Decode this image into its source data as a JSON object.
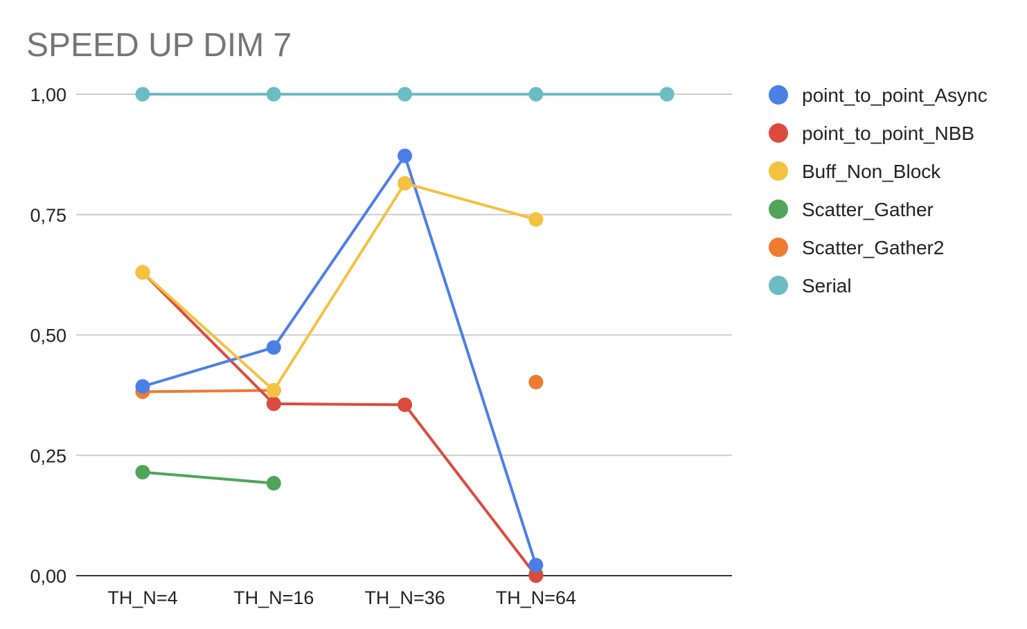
{
  "chart_data": {
    "type": "line",
    "title": "SPEED UP DIM 7",
    "xlabel": "",
    "ylabel": "",
    "categories": [
      "TH_N=4",
      "TH_N=16",
      "TH_N=36",
      "TH_N=64",
      ""
    ],
    "ylim": [
      0,
      1
    ],
    "y_ticks": [
      {
        "value": 0,
        "label": "0,00"
      },
      {
        "value": 0.25,
        "label": "0,25"
      },
      {
        "value": 0.5,
        "label": "0,50"
      },
      {
        "value": 0.75,
        "label": "0,75"
      },
      {
        "value": 1,
        "label": "1,00"
      }
    ],
    "grid": true,
    "legend_position": "right",
    "series": [
      {
        "name": "point_to_point_Async",
        "color": "#4A7FE7",
        "values": [
          0.393,
          0.474,
          0.872,
          0.022,
          null
        ]
      },
      {
        "name": "point_to_point_NBB",
        "color": "#DB4B3D",
        "values": [
          0.63,
          0.357,
          0.355,
          0.0,
          null
        ]
      },
      {
        "name": "Buff_Non_Block",
        "color": "#F4C140",
        "values": [
          0.63,
          0.385,
          0.815,
          0.74,
          null
        ]
      },
      {
        "name": "Scatter_Gather",
        "color": "#4FA55A",
        "values": [
          0.215,
          0.192,
          null,
          0.003,
          null
        ]
      },
      {
        "name": "Scatter_Gather2",
        "color": "#EF7A30",
        "values": [
          0.382,
          0.385,
          null,
          0.402,
          null
        ]
      },
      {
        "name": "Serial",
        "color": "#6CBCC4",
        "values": [
          1.0,
          1.0,
          1.0,
          1.0,
          1.0
        ]
      }
    ]
  }
}
